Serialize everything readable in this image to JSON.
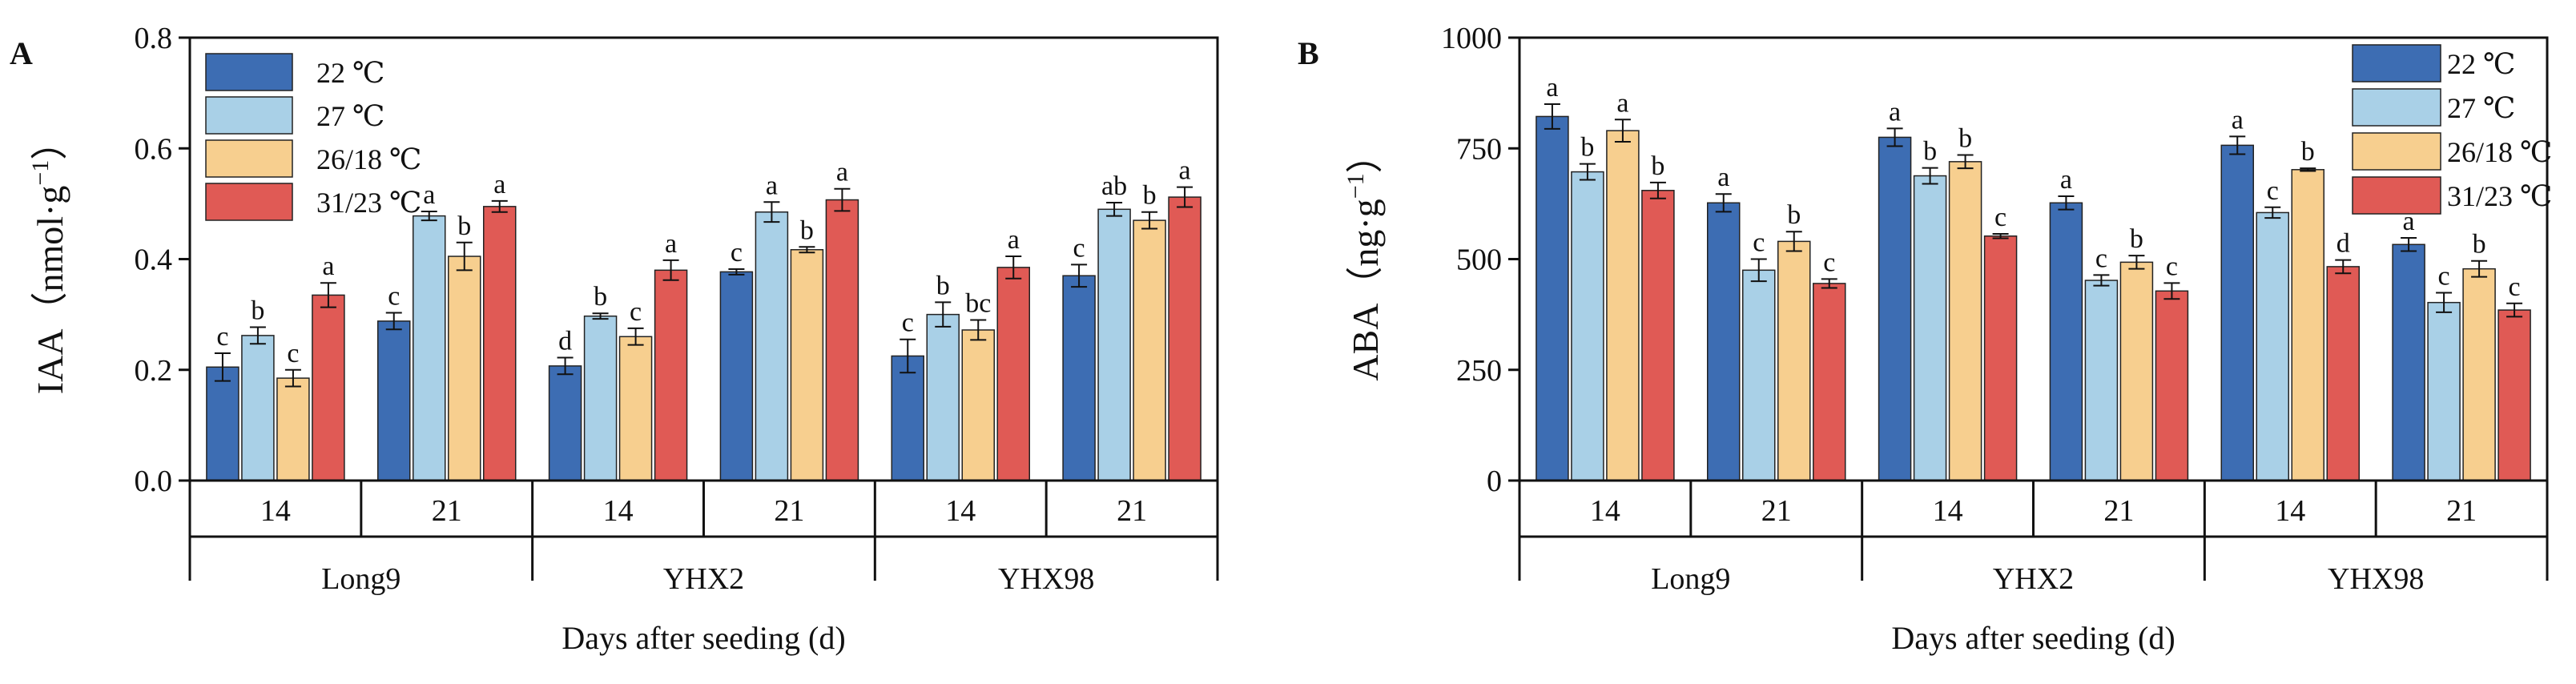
{
  "colors": {
    "22C": "#3d6db3",
    "27C": "#a9d0e7",
    "26_18C": "#f7cf8f",
    "31_23C": "#e05a55",
    "axis": "#111111"
  },
  "x_axis_title": "Days after seeding (d)",
  "chart_data": [
    {
      "type": "bar",
      "panel": "A",
      "ylabel": "IAA（nmol·g",
      "ylabel_sup": "−1",
      "ylabel_close": "）",
      "ylim": [
        0,
        0.8
      ],
      "yticks": [
        "0.0",
        "0.2",
        "0.4",
        "0.6",
        "0.8"
      ],
      "ytick_values": [
        0,
        0.2,
        0.4,
        0.6,
        0.8
      ],
      "legend": {
        "position": "top-left",
        "entries": [
          "22 ℃",
          "27 ℃",
          "26/18 ℃",
          "31/23 ℃"
        ]
      },
      "groups": [
        {
          "cultivar": "Long9",
          "days": [
            "14",
            "21"
          ]
        },
        {
          "cultivar": "YHX2",
          "days": [
            "14",
            "21"
          ]
        },
        {
          "cultivar": "YHX98",
          "days": [
            "14",
            "21"
          ]
        }
      ],
      "series": [
        {
          "name": "22 ℃",
          "values": [
            0.205,
            0.288,
            0.207,
            0.377,
            0.225,
            0.37
          ],
          "errors": [
            0.025,
            0.015,
            0.015,
            0.005,
            0.03,
            0.02
          ],
          "letters": [
            "c",
            "c",
            "d",
            "c",
            "c",
            "c"
          ]
        },
        {
          "name": "27 ℃",
          "values": [
            0.262,
            0.478,
            0.297,
            0.485,
            0.3,
            0.49
          ],
          "errors": [
            0.015,
            0.008,
            0.005,
            0.018,
            0.022,
            0.012
          ],
          "letters": [
            "b",
            "a",
            "b",
            "a",
            "b",
            "ab"
          ]
        },
        {
          "name": "26/18 ℃",
          "values": [
            0.185,
            0.405,
            0.26,
            0.417,
            0.272,
            0.47
          ],
          "errors": [
            0.015,
            0.025,
            0.015,
            0.005,
            0.018,
            0.015
          ],
          "letters": [
            "c",
            "b",
            "c",
            "b",
            "bc",
            "b"
          ]
        },
        {
          "name": "31/23 ℃",
          "values": [
            0.335,
            0.495,
            0.38,
            0.507,
            0.385,
            0.512
          ],
          "errors": [
            0.022,
            0.01,
            0.018,
            0.02,
            0.02,
            0.018
          ],
          "letters": [
            "a",
            "a",
            "a",
            "a",
            "a",
            "a"
          ]
        }
      ]
    },
    {
      "type": "bar",
      "panel": "B",
      "ylabel": "ABA（ng·g",
      "ylabel_sup": "−1",
      "ylabel_close": "）",
      "ylim": [
        0,
        1000
      ],
      "yticks": [
        "0",
        "250",
        "500",
        "750",
        "1000"
      ],
      "ytick_values": [
        0,
        250,
        500,
        750,
        1000
      ],
      "legend": {
        "position": "top-right",
        "entries": [
          "22 ℃",
          "27 ℃",
          "26/18 ℃",
          "31/23 ℃"
        ]
      },
      "groups": [
        {
          "cultivar": "Long9",
          "days": [
            "14",
            "21"
          ]
        },
        {
          "cultivar": "YHX2",
          "days": [
            "14",
            "21"
          ]
        },
        {
          "cultivar": "YHX98",
          "days": [
            "14",
            "21"
          ]
        }
      ],
      "series": [
        {
          "name": "22 ℃",
          "values": [
            822,
            627,
            775,
            627,
            757,
            533
          ],
          "errors": [
            28,
            20,
            20,
            15,
            20,
            15
          ],
          "letters": [
            "a",
            "a",
            "a",
            "a",
            "a",
            "a"
          ]
        },
        {
          "name": "27 ℃",
          "values": [
            697,
            475,
            688,
            452,
            605,
            402
          ],
          "errors": [
            18,
            25,
            18,
            12,
            12,
            22
          ],
          "letters": [
            "b",
            "c",
            "b",
            "c",
            "c",
            "c"
          ]
        },
        {
          "name": "26/18 ℃",
          "values": [
            790,
            540,
            720,
            493,
            702,
            478
          ],
          "errors": [
            25,
            22,
            15,
            15,
            3,
            18
          ],
          "letters": [
            "a",
            "b",
            "b",
            "b",
            "b",
            "b"
          ]
        },
        {
          "name": "31/23 ℃",
          "values": [
            655,
            445,
            552,
            428,
            483,
            385
          ],
          "errors": [
            18,
            10,
            5,
            18,
            15,
            15
          ],
          "letters": [
            "b",
            "c",
            "c",
            "c",
            "d",
            "c"
          ]
        }
      ]
    }
  ]
}
